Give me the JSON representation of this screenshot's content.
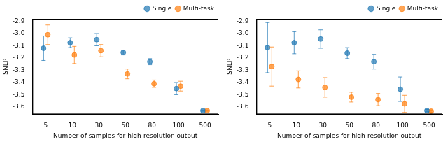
{
  "chart_data": [
    {
      "type": "scatter",
      "x_label": "Number of samples for high-resolution output",
      "y_label": "SNLP",
      "categories": [
        "5",
        "10",
        "30",
        "50",
        "80",
        "100",
        "500"
      ],
      "series": [
        {
          "name": "Single",
          "color": "#1f77b4",
          "marker": "circle",
          "values": [
            -3.12,
            -3.075,
            -3.05,
            -3.155,
            -3.23,
            -3.45,
            -3.63
          ],
          "errors": [
            0.1,
            0.04,
            0.05,
            0.02,
            0.025,
            0.05,
            0.005
          ]
        },
        {
          "name": "Multi-task",
          "color": "#ff7f0e",
          "marker": "circle",
          "values": [
            -3.01,
            -3.175,
            -3.14,
            -3.33,
            -3.41,
            -3.43,
            -3.63
          ],
          "errors": [
            0.08,
            0.07,
            0.05,
            0.04,
            0.03,
            0.04,
            0.005
          ]
        }
      ],
      "ylim": [
        -3.66,
        -2.88
      ],
      "yticks": [
        -2.9,
        {
          "value": -3,
          "label": "-3.0"
        },
        -3.1,
        -3.2,
        -3.3,
        -3.4,
        -3.5,
        -3.6
      ],
      "grid": false,
      "legend": "upper right"
    },
    {
      "type": "scatter",
      "x_label": "Number of samples for high-resolution output",
      "y_label": "SNLP",
      "categories": [
        "5",
        "10",
        "30",
        "50",
        "80",
        "100",
        "500"
      ],
      "series": [
        {
          "name": "Single",
          "color": "#1f77b4",
          "marker": "circle",
          "values": [
            -3.115,
            -3.075,
            -3.045,
            -3.16,
            -3.23,
            -3.455,
            -3.63
          ],
          "errors": [
            0.205,
            0.09,
            0.075,
            0.045,
            0.06,
            0.1,
            0.01
          ]
        },
        {
          "name": "Multi-task",
          "color": "#ff7f0e",
          "marker": "circle",
          "values": [
            -3.27,
            -3.375,
            -3.44,
            -3.52,
            -3.54,
            -3.575,
            -3.635
          ],
          "errors": [
            0.16,
            0.07,
            0.08,
            0.04,
            0.05,
            0.07,
            0.01
          ]
        }
      ],
      "ylim": [
        -3.66,
        -2.88
      ],
      "yticks": [
        -2.9,
        {
          "value": -3,
          "label": "-3.0"
        },
        -3.1,
        -3.2,
        -3.3,
        -3.4,
        -3.5,
        -3.6
      ],
      "grid": false,
      "legend": "upper right"
    }
  ]
}
